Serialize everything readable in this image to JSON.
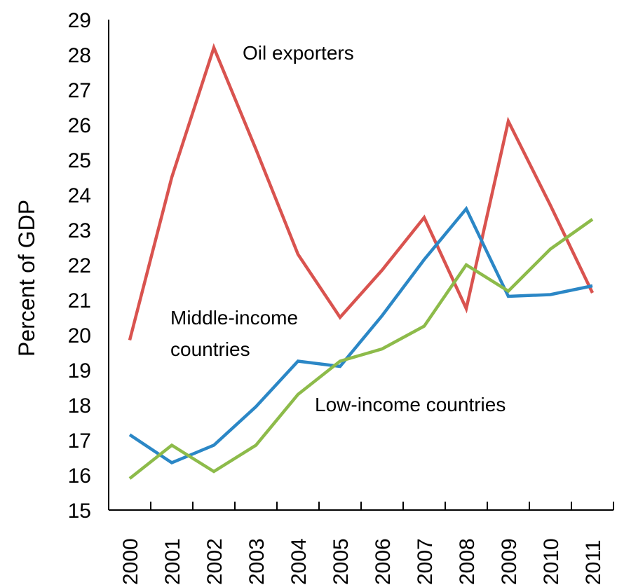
{
  "chart_data": {
    "type": "line",
    "title": "",
    "xlabel": "",
    "ylabel": "Percent of GDP",
    "categories": [
      "2000",
      "2001",
      "2002",
      "2003",
      "2004",
      "2005",
      "2006",
      "2007",
      "2008",
      "2009",
      "2010",
      "2011"
    ],
    "ylim": [
      15,
      29
    ],
    "yticks": [
      "15",
      "16",
      "17",
      "18",
      "19",
      "20",
      "21",
      "22",
      "23",
      "24",
      "25",
      "26",
      "27",
      "28",
      "29"
    ],
    "grid": false,
    "legend": "none",
    "series": [
      {
        "name": "Oil exporters",
        "color": "#d9534f",
        "values": [
          19.85,
          24.5,
          28.2,
          25.3,
          22.3,
          20.5,
          21.85,
          23.35,
          20.75,
          26.1,
          23.7,
          21.2
        ]
      },
      {
        "name": "Middle-income countries",
        "color": "#2b87c6",
        "values": [
          17.15,
          16.35,
          16.85,
          17.95,
          19.25,
          19.1,
          20.55,
          22.15,
          23.6,
          21.1,
          21.15,
          21.4
        ]
      },
      {
        "name": "Low-income countries",
        "color": "#8dbb4a",
        "values": [
          15.9,
          16.85,
          16.1,
          16.85,
          18.3,
          19.25,
          19.6,
          20.25,
          22.0,
          21.25,
          22.45,
          23.3
        ]
      }
    ],
    "annotations": [
      {
        "series": 0,
        "text": "Oil exporters"
      },
      {
        "series": 1,
        "lines": [
          "Middle-income",
          "countries"
        ]
      },
      {
        "series": 2,
        "text": "Low-income countries"
      }
    ]
  }
}
